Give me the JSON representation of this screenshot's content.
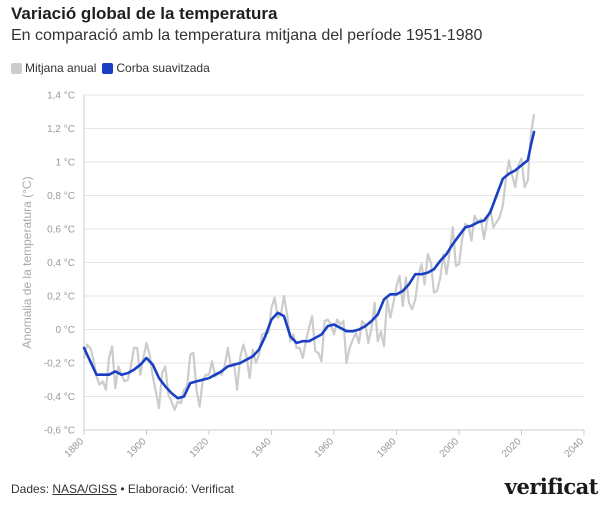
{
  "header": {
    "title": "Variació global de la temperatura",
    "subtitle": "En comparació amb la temperatura mitjana del període 1951-1980"
  },
  "footer": {
    "prefix": "Dades: ",
    "source": "NASA/GISS",
    "separator": " • ",
    "credit": "Elaboració: Verificat",
    "brand": "verificat"
  },
  "colors": {
    "annual": "#cccccc",
    "smoothed": "#1a3fc4",
    "grid": "#e6e6e6",
    "axis": "#999999"
  },
  "chart_data": {
    "type": "line",
    "title": "Variació global de la temperatura",
    "ylabel": "Anomalia de la temperatura (°C)",
    "xlabel": "",
    "xlim": [
      1880,
      2040
    ],
    "ylim": [
      -0.6,
      1.4
    ],
    "x_ticks": [
      "1880",
      "1900",
      "1920",
      "1940",
      "1960",
      "1980",
      "2000",
      "2020",
      "2040"
    ],
    "y_ticks": [
      "-0,6 °C",
      "-0,4 °C",
      "-0,2 °C",
      "0 °C",
      "0,2 °C",
      "0,4 °C",
      "0,6 °C",
      "0,8 °C",
      "1 °C",
      "1,2 °C",
      "1,4 °C"
    ],
    "legend": [
      "Mitjana anual",
      "Corba suavitzada"
    ],
    "series": [
      {
        "name": "Mitjana anual",
        "years": [
          1880,
          1881,
          1882,
          1883,
          1884,
          1885,
          1886,
          1887,
          1888,
          1889,
          1890,
          1891,
          1892,
          1893,
          1894,
          1895,
          1896,
          1897,
          1898,
          1899,
          1900,
          1901,
          1902,
          1903,
          1904,
          1905,
          1906,
          1907,
          1908,
          1909,
          1910,
          1911,
          1912,
          1913,
          1914,
          1915,
          1916,
          1917,
          1918,
          1919,
          1920,
          1921,
          1922,
          1923,
          1924,
          1925,
          1926,
          1927,
          1928,
          1929,
          1930,
          1931,
          1932,
          1933,
          1934,
          1935,
          1936,
          1937,
          1938,
          1939,
          1940,
          1941,
          1942,
          1943,
          1944,
          1945,
          1946,
          1947,
          1948,
          1949,
          1950,
          1951,
          1952,
          1953,
          1954,
          1955,
          1956,
          1957,
          1958,
          1959,
          1960,
          1961,
          1962,
          1963,
          1964,
          1965,
          1966,
          1967,
          1968,
          1969,
          1970,
          1971,
          1972,
          1973,
          1974,
          1975,
          1976,
          1977,
          1978,
          1979,
          1980,
          1981,
          1982,
          1983,
          1984,
          1985,
          1986,
          1987,
          1988,
          1989,
          1990,
          1991,
          1992,
          1993,
          1994,
          1995,
          1996,
          1997,
          1998,
          1999,
          2000,
          2001,
          2002,
          2003,
          2004,
          2005,
          2006,
          2007,
          2008,
          2009,
          2010,
          2011,
          2012,
          2013,
          2014,
          2015,
          2016,
          2017,
          2018,
          2019,
          2020,
          2021,
          2022,
          2023,
          2024
        ],
        "values": [
          -0.17,
          -0.09,
          -0.11,
          -0.18,
          -0.28,
          -0.33,
          -0.31,
          -0.36,
          -0.17,
          -0.1,
          -0.35,
          -0.22,
          -0.27,
          -0.31,
          -0.3,
          -0.22,
          -0.11,
          -0.11,
          -0.27,
          -0.17,
          -0.08,
          -0.15,
          -0.28,
          -0.37,
          -0.47,
          -0.26,
          -0.22,
          -0.39,
          -0.43,
          -0.48,
          -0.43,
          -0.44,
          -0.36,
          -0.34,
          -0.15,
          -0.14,
          -0.36,
          -0.46,
          -0.3,
          -0.27,
          -0.27,
          -0.19,
          -0.28,
          -0.26,
          -0.27,
          -0.22,
          -0.11,
          -0.22,
          -0.2,
          -0.36,
          -0.16,
          -0.09,
          -0.16,
          -0.29,
          -0.12,
          -0.2,
          -0.15,
          -0.03,
          -0.02,
          -0.02,
          0.13,
          0.19,
          0.07,
          0.09,
          0.2,
          0.09,
          -0.07,
          -0.03,
          -0.11,
          -0.11,
          -0.17,
          -0.07,
          0.01,
          0.08,
          -0.13,
          -0.14,
          -0.19,
          0.05,
          0.06,
          0.03,
          -0.03,
          0.06,
          0.03,
          0.05,
          -0.2,
          -0.11,
          -0.06,
          -0.02,
          -0.08,
          0.05,
          0.03,
          -0.08,
          0.01,
          0.16,
          -0.07,
          -0.01,
          -0.1,
          0.18,
          0.07,
          0.16,
          0.26,
          0.32,
          0.14,
          0.31,
          0.16,
          0.12,
          0.18,
          0.32,
          0.39,
          0.27,
          0.45,
          0.4,
          0.22,
          0.23,
          0.31,
          0.45,
          0.33,
          0.46,
          0.61,
          0.38,
          0.39,
          0.54,
          0.63,
          0.62,
          0.53,
          0.68,
          0.64,
          0.66,
          0.54,
          0.65,
          0.72,
          0.61,
          0.64,
          0.67,
          0.74,
          0.9,
          1.01,
          0.92,
          0.85,
          0.98,
          1.02,
          0.85,
          0.89,
          1.17,
          1.28
        ]
      },
      {
        "name": "Corba suavitzada",
        "years": [
          1880,
          1882,
          1884,
          1886,
          1888,
          1890,
          1892,
          1894,
          1896,
          1898,
          1900,
          1902,
          1904,
          1906,
          1908,
          1910,
          1912,
          1914,
          1916,
          1918,
          1920,
          1922,
          1924,
          1926,
          1928,
          1930,
          1932,
          1934,
          1936,
          1938,
          1940,
          1942,
          1944,
          1946,
          1948,
          1950,
          1952,
          1954,
          1956,
          1958,
          1960,
          1962,
          1964,
          1966,
          1968,
          1970,
          1972,
          1974,
          1976,
          1978,
          1980,
          1982,
          1984,
          1986,
          1988,
          1990,
          1992,
          1994,
          1996,
          1998,
          2000,
          2002,
          2004,
          2006,
          2008,
          2010,
          2012,
          2014,
          2016,
          2018,
          2020,
          2022,
          2023,
          2024
        ],
        "values": [
          -0.11,
          -0.19,
          -0.27,
          -0.27,
          -0.27,
          -0.25,
          -0.27,
          -0.26,
          -0.24,
          -0.21,
          -0.17,
          -0.21,
          -0.29,
          -0.34,
          -0.38,
          -0.41,
          -0.4,
          -0.32,
          -0.31,
          -0.3,
          -0.29,
          -0.27,
          -0.25,
          -0.22,
          -0.21,
          -0.2,
          -0.18,
          -0.16,
          -0.12,
          -0.04,
          0.06,
          0.1,
          0.08,
          -0.04,
          -0.08,
          -0.07,
          -0.07,
          -0.05,
          -0.03,
          0.02,
          0.03,
          0.01,
          -0.01,
          -0.01,
          0.0,
          0.02,
          0.05,
          0.09,
          0.18,
          0.21,
          0.21,
          0.23,
          0.27,
          0.33,
          0.33,
          0.34,
          0.36,
          0.41,
          0.45,
          0.51,
          0.56,
          0.61,
          0.62,
          0.64,
          0.65,
          0.7,
          0.8,
          0.9,
          0.93,
          0.95,
          0.98,
          1.01,
          1.1,
          1.18
        ]
      }
    ]
  }
}
